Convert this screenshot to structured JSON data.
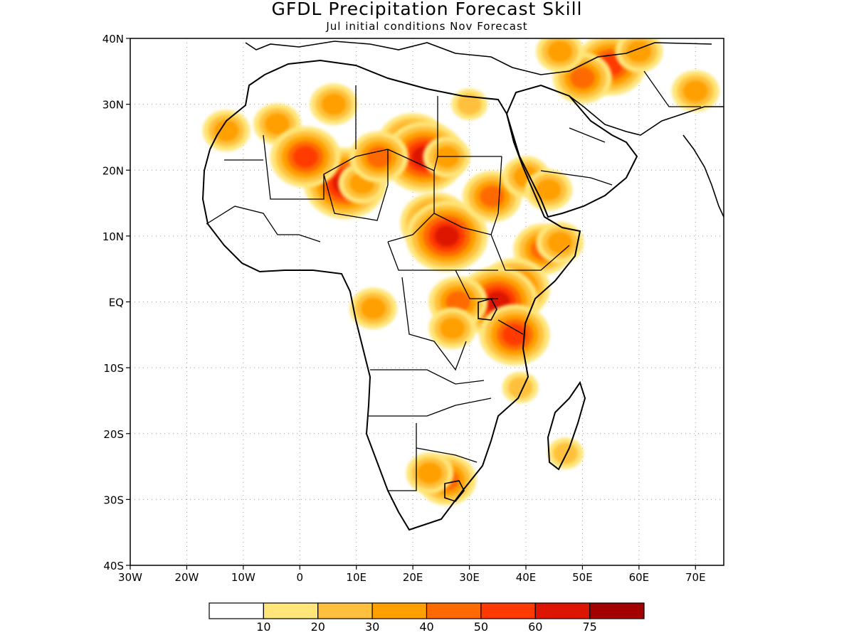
{
  "header": {
    "title": "GFDL Precipitation Forecast Skill",
    "subtitle": "Jul initial conditions  Nov Forecast"
  },
  "map": {
    "lon_range": [
      -30,
      75
    ],
    "lat_range": [
      -40,
      40
    ],
    "lat_ticks": [
      {
        "value": 40,
        "label": "40N"
      },
      {
        "value": 30,
        "label": "30N"
      },
      {
        "value": 20,
        "label": "20N"
      },
      {
        "value": 10,
        "label": "10N"
      },
      {
        "value": 0,
        "label": "EQ"
      },
      {
        "value": -10,
        "label": "10S"
      },
      {
        "value": -20,
        "label": "20S"
      },
      {
        "value": -30,
        "label": "30S"
      },
      {
        "value": -40,
        "label": "40S"
      }
    ],
    "lon_ticks": [
      {
        "value": -30,
        "label": "30W"
      },
      {
        "value": -20,
        "label": "20W"
      },
      {
        "value": -10,
        "label": "10W"
      },
      {
        "value": 0,
        "label": "0"
      },
      {
        "value": 10,
        "label": "10E"
      },
      {
        "value": 20,
        "label": "20E"
      },
      {
        "value": 30,
        "label": "30E"
      },
      {
        "value": 40,
        "label": "40E"
      },
      {
        "value": 50,
        "label": "50E"
      },
      {
        "value": 60,
        "label": "60E"
      },
      {
        "value": 70,
        "label": "70E"
      }
    ],
    "grid": true,
    "skill_regions": [
      {
        "lon": 8,
        "lat": 18,
        "level": 6
      },
      {
        "lon": 11,
        "lat": 18,
        "level": 3
      },
      {
        "lon": 20,
        "lat": 24,
        "level": 5
      },
      {
        "lon": 22,
        "lat": 22,
        "level": 6
      },
      {
        "lon": 14,
        "lat": 22,
        "level": 4
      },
      {
        "lon": 26,
        "lat": 22,
        "level": 3
      },
      {
        "lon": 6,
        "lat": 30,
        "level": 3
      },
      {
        "lon": -4,
        "lat": 27,
        "level": 3
      },
      {
        "lon": 1,
        "lat": 22,
        "level": 5
      },
      {
        "lon": 24,
        "lat": 12,
        "level": 5
      },
      {
        "lon": 26,
        "lat": 10,
        "level": 6
      },
      {
        "lon": 34,
        "lat": 16,
        "level": 4
      },
      {
        "lon": 43,
        "lat": 8,
        "level": 4
      },
      {
        "lon": 46,
        "lat": 9,
        "level": 3
      },
      {
        "lon": 38,
        "lat": 2,
        "level": 5
      },
      {
        "lon": 35,
        "lat": 0,
        "level": 6
      },
      {
        "lon": 38,
        "lat": -5,
        "level": 5
      },
      {
        "lon": 28,
        "lat": 0,
        "level": 4
      },
      {
        "lon": 27,
        "lat": -4,
        "level": 3
      },
      {
        "lon": 40,
        "lat": 19,
        "level": 3
      },
      {
        "lon": 44,
        "lat": 17,
        "level": 3
      },
      {
        "lon": 55,
        "lat": 36,
        "level": 5
      },
      {
        "lon": 50,
        "lat": 34,
        "level": 4
      },
      {
        "lon": 60,
        "lat": 38,
        "level": 3
      },
      {
        "lon": 70,
        "lat": 32,
        "level": 3
      },
      {
        "lon": 46,
        "lat": 38,
        "level": 3
      },
      {
        "lon": 26,
        "lat": -27,
        "level": 4
      },
      {
        "lon": 23,
        "lat": -26,
        "level": 3
      },
      {
        "lon": 13,
        "lat": -1,
        "level": 3
      },
      {
        "lon": 47,
        "lat": -23,
        "level": 2
      },
      {
        "lon": 39,
        "lat": -13,
        "level": 2
      },
      {
        "lon": -13,
        "lat": 26,
        "level": 3
      },
      {
        "lon": 30,
        "lat": 30,
        "level": 2
      }
    ]
  },
  "colorbar": {
    "colors": [
      "#ffffff",
      "#ffe57a",
      "#ffc13d",
      "#ff9f00",
      "#ff6a00",
      "#ff3a00",
      "#dd1400",
      "#a30000"
    ],
    "labels": [
      "10",
      "20",
      "30",
      "40",
      "50",
      "60",
      "75"
    ]
  }
}
